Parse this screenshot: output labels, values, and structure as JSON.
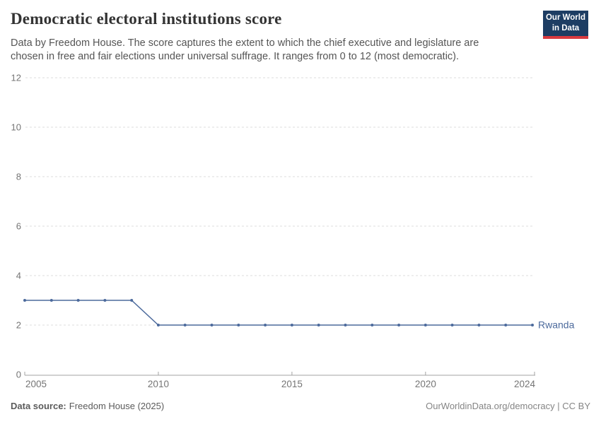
{
  "header": {
    "title": "Democratic electoral institutions score",
    "subtitle": "Data by Freedom House. The score captures the extent to which the chief executive and legislature are chosen in free and fair elections under universal suffrage. It ranges from 0 to 12 (most democratic).",
    "logo": {
      "line1": "Our World",
      "line2": "in Data"
    }
  },
  "chart_data": {
    "type": "line",
    "title": "Democratic electoral institutions score",
    "x": [
      2005,
      2006,
      2007,
      2008,
      2009,
      2010,
      2011,
      2012,
      2013,
      2014,
      2015,
      2016,
      2017,
      2018,
      2019,
      2020,
      2021,
      2022,
      2023,
      2024
    ],
    "series": [
      {
        "name": "Rwanda",
        "color": "#4c6a9c",
        "values": [
          3,
          3,
          3,
          3,
          3,
          2,
          2,
          2,
          2,
          2,
          2,
          2,
          2,
          2,
          2,
          2,
          2,
          2,
          2,
          2
        ]
      }
    ],
    "xlim": [
      2005,
      2024
    ],
    "ylim": [
      0,
      12
    ],
    "xticks": [
      2005,
      2010,
      2015,
      2020,
      2024
    ],
    "yticks": [
      0,
      2,
      4,
      6,
      8,
      10,
      12
    ],
    "grid": "horizontal-dashed",
    "legend": "line-end-label",
    "marker": "dot-every-year"
  },
  "footer": {
    "source_label": "Data source:",
    "source_value": "Freedom House (2025)",
    "credit": "OurWorldinData.org/democracy | CC BY"
  },
  "colors": {
    "line": "#4c6a9c",
    "grid": "#dddddd",
    "axis": "#a3a3a3",
    "tick_label": "#757575",
    "entity_label": "#4c6a9c"
  }
}
